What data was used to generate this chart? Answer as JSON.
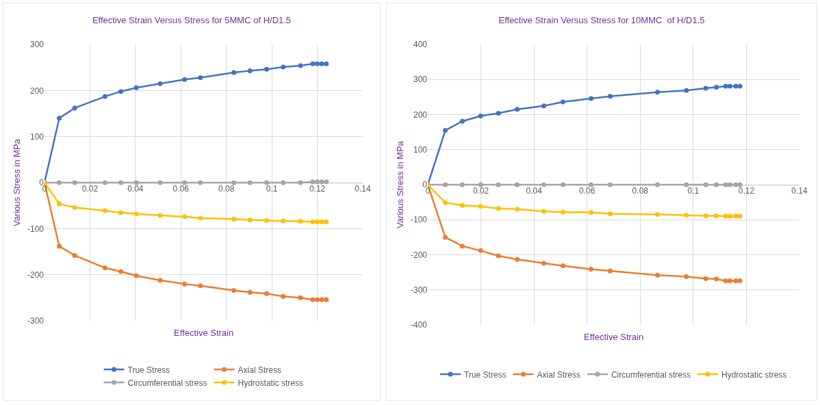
{
  "chart_data": [
    {
      "type": "line",
      "title": "Effective Strain Versus Stress for 5MMC of H/D1.5",
      "xlabel": "Effective Strain",
      "ylabel": "Various Stress in MPa",
      "x": [
        0,
        0.0065,
        0.0133,
        0.0266,
        0.0336,
        0.0404,
        0.0509,
        0.0616,
        0.0686,
        0.0833,
        0.0904,
        0.0977,
        0.105,
        0.1126,
        0.118,
        0.12,
        0.122,
        0.124
      ],
      "series": [
        {
          "name": "True Stress",
          "color": "#4472c4",
          "values": [
            0,
            140,
            162,
            187,
            198,
            206,
            215,
            224,
            228,
            239,
            243,
            246,
            251,
            254,
            258,
            258,
            258,
            258
          ]
        },
        {
          "name": "Axial Stress",
          "color": "#ed7d31",
          "values": [
            0,
            -138,
            -158,
            -185,
            -193,
            -202,
            -212,
            -220,
            -224,
            -234,
            -238,
            -241,
            -247,
            -250,
            -254,
            -254,
            -254,
            -254
          ]
        },
        {
          "name": "Circumferential stress",
          "color": "#a5a5a5",
          "values": [
            0,
            0,
            0,
            0,
            0,
            0,
            0,
            0,
            0,
            0,
            0,
            0,
            0,
            0,
            2,
            2,
            2,
            2
          ]
        },
        {
          "name": "Hydrostatic stress",
          "color": "#ffc000",
          "values": [
            0,
            -46,
            -54,
            -61,
            -65,
            -68,
            -71,
            -74,
            -77,
            -79,
            -81,
            -82,
            -83,
            -84,
            -85,
            -85,
            -85,
            -85
          ]
        }
      ],
      "xlim": [
        0,
        0.14
      ],
      "xticks": [
        0,
        0.02,
        0.04,
        0.06,
        0.08,
        0.1,
        0.12,
        0.14
      ],
      "ylim": [
        -300,
        300
      ],
      "yticks": [
        -300,
        -200,
        -100,
        0,
        100,
        200,
        300
      ],
      "grid": true,
      "legend": "bottom",
      "marker": "circle",
      "line_style": "solid"
    },
    {
      "type": "line",
      "title": "Effective Strain Versus Stress for 10MMC  of H/D1.5",
      "xlabel": "Effective Strain",
      "ylabel": "Various Stress in MPa",
      "x": [
        0,
        0.0066,
        0.013,
        0.0199,
        0.0266,
        0.0337,
        0.0437,
        0.0509,
        0.0615,
        0.0687,
        0.0865,
        0.0974,
        0.1047,
        0.1087,
        0.1122,
        0.1138,
        0.116,
        0.1176
      ],
      "series": [
        {
          "name": "True Stress",
          "color": "#4472c4",
          "values": [
            0,
            155,
            181,
            196,
            204,
            215,
            225,
            236,
            246,
            252,
            264,
            269,
            275,
            278,
            281,
            281,
            281,
            281
          ]
        },
        {
          "name": "Axial Stress",
          "color": "#ed7d31",
          "values": [
            0,
            -150,
            -175,
            -188,
            -203,
            -213,
            -224,
            -231,
            -241,
            -246,
            -258,
            -262,
            -268,
            -269,
            -274,
            -274,
            -274,
            -274
          ]
        },
        {
          "name": "Circumferential stress",
          "color": "#a5a5a5",
          "values": [
            0,
            0,
            0,
            0,
            0,
            0,
            0,
            0,
            0,
            0,
            0,
            0,
            0,
            0,
            0,
            0,
            0,
            0
          ]
        },
        {
          "name": "Hydrostatic stress",
          "color": "#ffc000",
          "values": [
            0,
            -51,
            -59,
            -62,
            -68,
            -70,
            -76,
            -78,
            -79,
            -83,
            -85,
            -87,
            -89,
            -89,
            -90,
            -90,
            -90,
            -90
          ]
        }
      ],
      "xlim": [
        0,
        0.14
      ],
      "xticks": [
        0,
        0.02,
        0.04,
        0.06,
        0.08,
        0.1,
        0.12,
        0.14
      ],
      "ylim": [
        -400,
        400
      ],
      "yticks": [
        -400,
        -300,
        -200,
        -100,
        0,
        100,
        200,
        300,
        400
      ],
      "grid": true,
      "legend": "bottom",
      "marker": "circle",
      "line_style": "solid"
    }
  ]
}
